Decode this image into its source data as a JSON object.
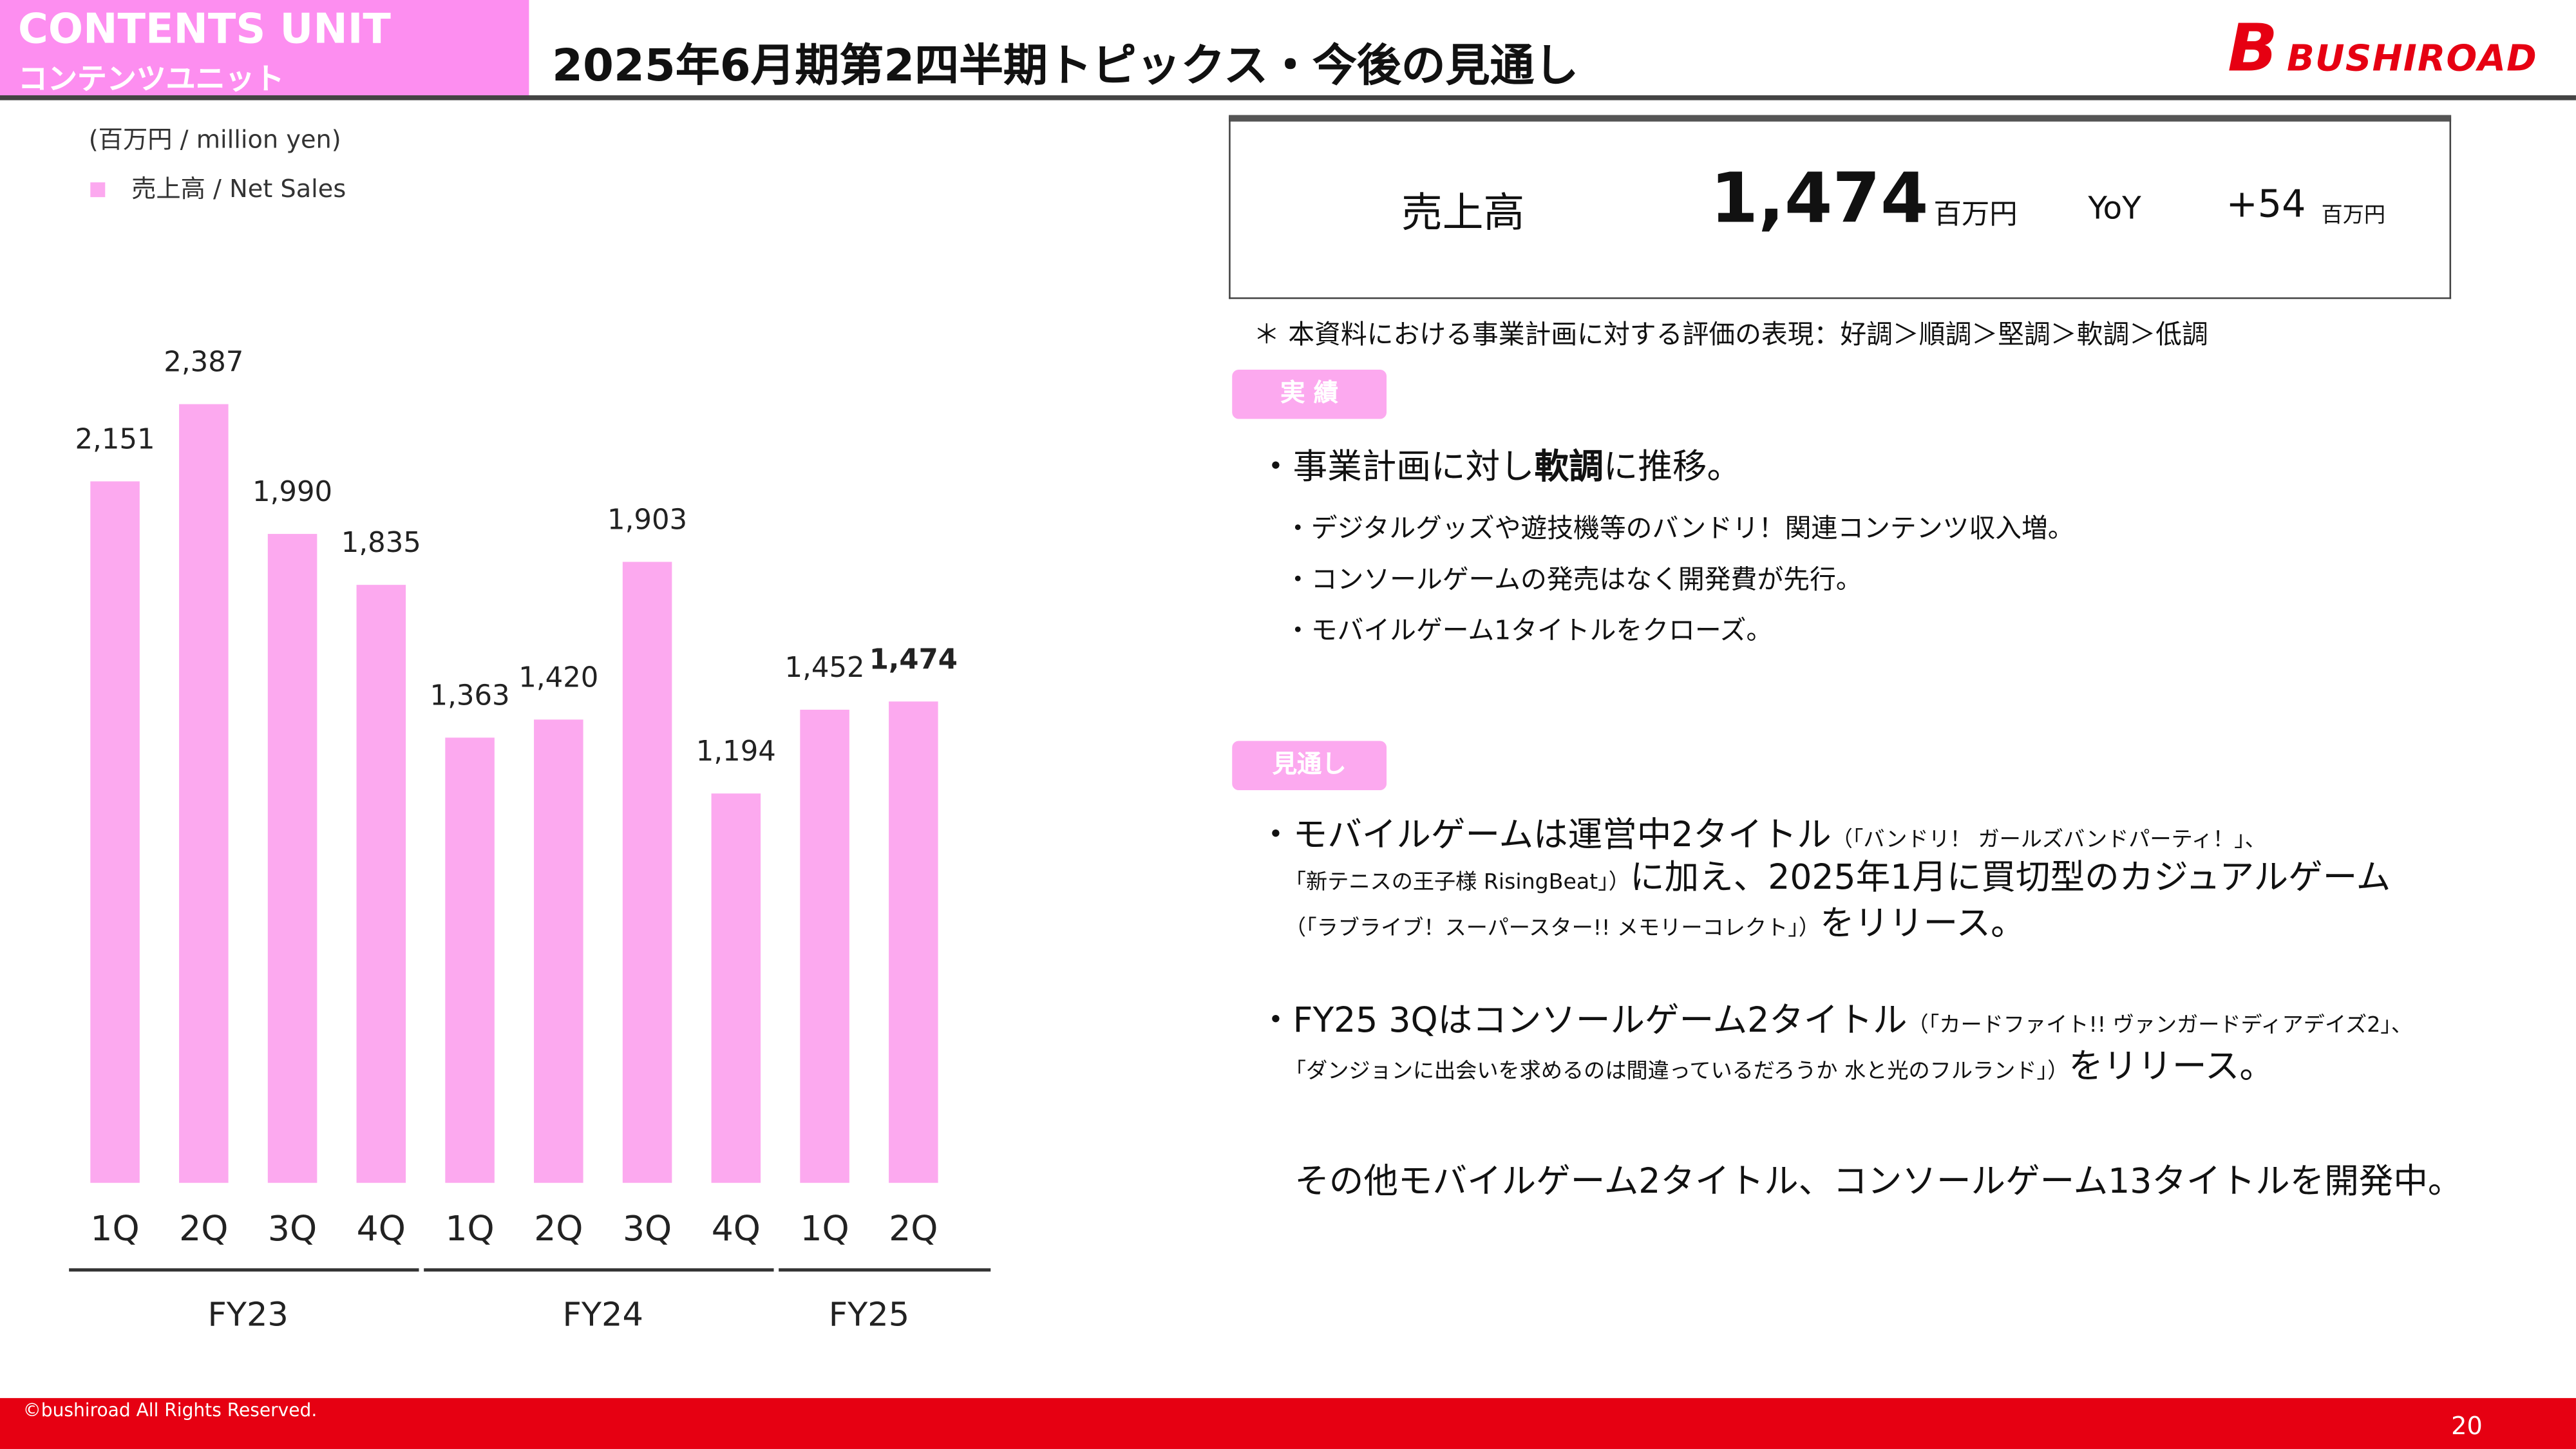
{
  "header": {
    "unit_en": "CONTENTS UNIT",
    "unit_ja": "コンテンツユニット",
    "title": "2025年6月期第2四半期トピックス・今後の見通し",
    "logo_text": "BUSHIROAD"
  },
  "chart_data": {
    "type": "bar",
    "unit_label": "(百万円 / million yen)",
    "legend": "売上高 / Net Sales",
    "series": [
      {
        "name": "売上高 / Net Sales",
        "color": "#fca9ef",
        "values": [
          2151,
          2387,
          1990,
          1835,
          1363,
          1420,
          1903,
          1194,
          1452,
          1474
        ]
      }
    ],
    "value_labels": [
      "2,151",
      "2,387",
      "1,990",
      "1,835",
      "1,363",
      "1,420",
      "1,903",
      "1,194",
      "1,452",
      "1,474"
    ],
    "categories": [
      "1Q",
      "2Q",
      "3Q",
      "4Q",
      "1Q",
      "2Q",
      "3Q",
      "4Q",
      "1Q",
      "2Q"
    ],
    "groups": [
      {
        "label": "FY23",
        "count": 4
      },
      {
        "label": "FY24",
        "count": 4
      },
      {
        "label": "FY25",
        "count": 2
      }
    ],
    "highlight_index": 9,
    "ylim": [
      0,
      2400
    ],
    "grid": false,
    "legend_position": "top-left"
  },
  "kpi": {
    "label": "売上高",
    "value": "1,474",
    "unit": "百万円",
    "yoy_label": "YoY",
    "yoy_value": "+54",
    "yoy_unit": "百万円"
  },
  "note": "＊ 本資料における事業計画に対する評価の表現：好調＞順調＞堅調＞軟調＞低調",
  "results": {
    "tag": "実 績",
    "main_pre": "・事業計画に対し",
    "main_bold": "軟調",
    "main_post": "に推移。",
    "items": [
      "・デジタルグッズや遊技機等のバンドリ！関連コンテンツ収入増。",
      "・コンソールゲームの発売はなく開発費が先行。",
      "・モバイルゲーム1タイトルをクローズ。"
    ]
  },
  "outlook": {
    "tag": "見通し",
    "b1_a": "・モバイルゲームは運営中2タイトル",
    "b1_b": "（「バンドリ！ ガールズバンドパーティ！」、",
    "b1_c": "「新テニスの王子様 RisingBeat」）",
    "b1_d": "に加え、2025年1月に買切型のカジュアルゲーム",
    "b1_e": "（「ラブライブ！スーパースター!! メモリーコレクト」）",
    "b1_f": "をリリース。",
    "b2_a": "・FY25 3Qはコンソールゲーム2タイトル",
    "b2_b": "（「カードファイト!! ヴァンガードディアデイズ2」、",
    "b2_c": "「ダンジョンに出会いを求めるのは間違っているだろうか 水と光のフルランド」）",
    "b2_d": "をリリース。",
    "b3": "その他モバイルゲーム2タイトル、コンソールゲーム13タイトルを開発中。"
  },
  "footer": {
    "copyright": "©bushiroad All Rights Reserved.",
    "page": "20"
  }
}
